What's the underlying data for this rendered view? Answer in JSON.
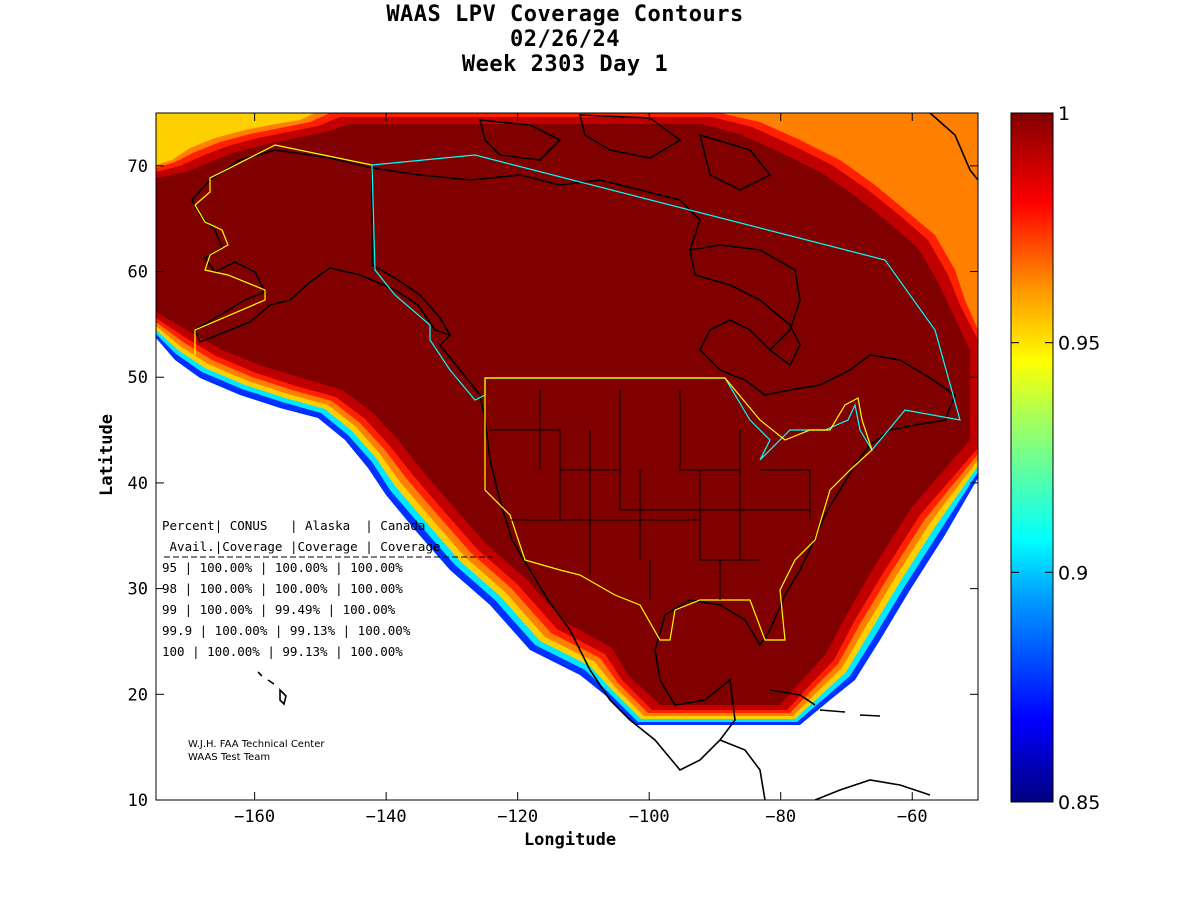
{
  "title": {
    "line1": "WAAS LPV Coverage Contours",
    "line2": "02/26/24",
    "line3": "Week 2303 Day 1"
  },
  "axes": {
    "xlabel": "Longitude",
    "ylabel": "Latitude",
    "xlim": [
      -175,
      -50
    ],
    "ylim": [
      10,
      75
    ],
    "xticks": [
      -160,
      -140,
      -120,
      -100,
      -80,
      -60
    ],
    "yticks": [
      10,
      20,
      30,
      40,
      50,
      60,
      70
    ],
    "xtick_labels": [
      "−160",
      "−140",
      "−120",
      "−100",
      "−80",
      "−60"
    ],
    "ytick_labels": [
      "10",
      "20",
      "30",
      "40",
      "50",
      "60",
      "70"
    ]
  },
  "colorbar": {
    "ticks": [
      1,
      0.95,
      0.9,
      0.85
    ],
    "tick_labels": [
      "1",
      "0.95",
      "0.9",
      "0.85"
    ],
    "range": [
      0.85,
      1
    ]
  },
  "coverage_table": {
    "header1": [
      "Percent",
      "CONUS",
      "Alaska",
      "Canada"
    ],
    "header2": [
      "Avail.",
      "Coverage",
      "Coverage",
      "Coverage"
    ],
    "rows": [
      {
        "avail": "95",
        "conus": "100.00%",
        "alaska": "100.00%",
        "canada": "100.00%"
      },
      {
        "avail": "98",
        "conus": "100.00%",
        "alaska": "100.00%",
        "canada": "100.00%"
      },
      {
        "avail": "99",
        "conus": "100.00%",
        "alaska": "99.49%",
        "canada": "100.00%"
      },
      {
        "avail": "99.9",
        "conus": "100.00%",
        "alaska": "99.13%",
        "canada": "100.00%"
      },
      {
        "avail": "100",
        "conus": "100.00%",
        "alaska": "99.13%",
        "canada": "100.00%"
      }
    ]
  },
  "credits": {
    "line1": "W.J.H. FAA Technical Center",
    "line2": "WAAS Test Team"
  },
  "colors": {
    "full_coverage": "#800000",
    "dark_red": "#b00000",
    "red": "#e60000",
    "orange_red": "#ff4000",
    "orange": "#ff8000",
    "yellow": "#ffd000",
    "cyan": "#00e0ff",
    "blue": "#0040ff",
    "navy": "#000080",
    "service_boundary_yellow": "#ffff00",
    "service_boundary_cyan": "#00ffff",
    "coastline": "#000000"
  }
}
